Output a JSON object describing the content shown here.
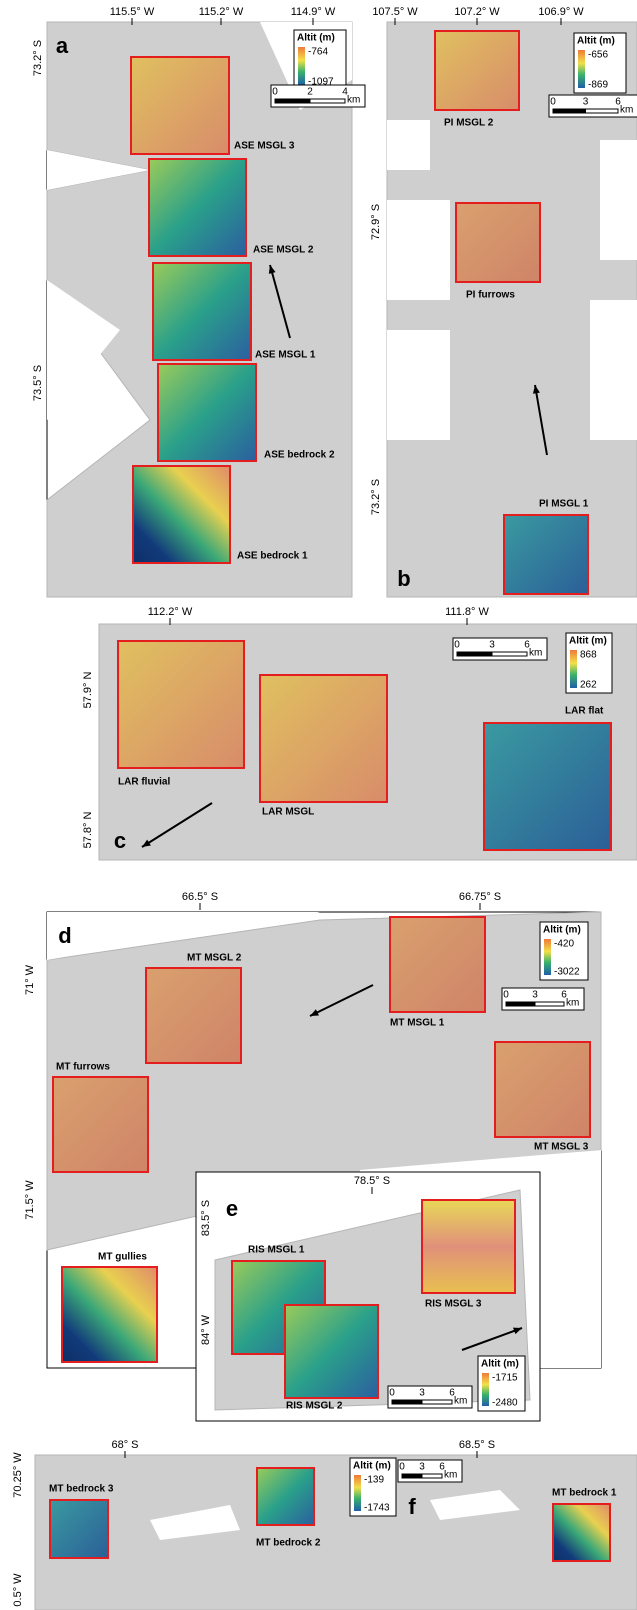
{
  "panels": [
    {
      "letter": "a",
      "top_labels": [
        "115.5° W",
        "115.2° W",
        "114.9° W"
      ],
      "left_labels": [
        "73.2° S",
        "73.5° S"
      ],
      "legend": {
        "title": "Altit (m)",
        "max": "-764",
        "min": "-1097"
      },
      "scale": {
        "labels": [
          "0",
          "2",
          "4"
        ],
        "unit": "km"
      },
      "boxes": [
        "ASE MSGL 3",
        "ASE MSGL 2",
        "ASE MSGL 1",
        "ASE bedrock 2",
        "ASE bedrock 1"
      ]
    },
    {
      "letter": "b",
      "top_labels": [
        "107.5° W",
        "107.2° W",
        "106.9° W"
      ],
      "left_labels": [
        "72.9° S",
        "73.2° S"
      ],
      "legend": {
        "title": "Altit (m)",
        "max": "-656",
        "min": "-869"
      },
      "scale": {
        "labels": [
          "0",
          "3",
          "6"
        ],
        "unit": "km"
      },
      "boxes": [
        "PI MSGL 2",
        "PI furrows",
        "PI MSGL 1"
      ]
    },
    {
      "letter": "c",
      "top_labels": [
        "112.2° W",
        "111.8° W"
      ],
      "left_labels": [
        "57.9° N",
        "57.8° N"
      ],
      "legend": {
        "title": "Altit (m)",
        "max": "868",
        "min": "262"
      },
      "scale": {
        "labels": [
          "0",
          "3",
          "6"
        ],
        "unit": "km"
      },
      "boxes": [
        "LAR fluvial",
        "LAR MSGL",
        "LAR flat"
      ]
    },
    {
      "letter": "d",
      "top_labels": [
        "66.5° S",
        "66.75° S"
      ],
      "left_labels": [
        "71° W",
        "71.5° W"
      ],
      "legend": {
        "title": "Altit (m)",
        "max": "-420",
        "min": "-3022"
      },
      "scale": {
        "labels": [
          "0",
          "3",
          "6"
        ],
        "unit": "km"
      },
      "boxes": [
        "MT MSGL 2",
        "MT MSGL 1",
        "MT furrows",
        "MT MSGL 3",
        "MT gullies"
      ]
    },
    {
      "letter": "e",
      "top_labels": [
        "78.5° S"
      ],
      "left_labels": [
        "83.5° S",
        "84° W"
      ],
      "legend": {
        "title": "Altit (m)",
        "max": "-1715",
        "min": "-2480"
      },
      "scale": {
        "labels": [
          "0",
          "3",
          "6"
        ],
        "unit": "km"
      },
      "boxes": [
        "RIS MSGL 1",
        "RIS MSGL 2",
        "RIS MSGL 3"
      ]
    },
    {
      "letter": "f",
      "top_labels": [
        "68° S",
        "68.5° S"
      ],
      "left_labels": [
        "70.25° W",
        "0.5° W"
      ],
      "legend": {
        "title": "Altit (m)",
        "max": "-139",
        "min": "-1743"
      },
      "scale": {
        "labels": [
          "0",
          "3",
          "6"
        ],
        "unit": "km"
      },
      "boxes": [
        "MT bedrock 3",
        "MT bedrock 2",
        "MT bedrock 1"
      ]
    }
  ]
}
